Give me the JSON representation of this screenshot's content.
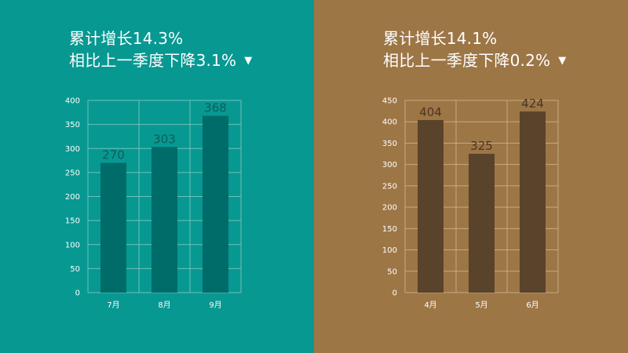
{
  "panels": [
    {
      "headline": {
        "line1": "累计增长14.3%",
        "line2": "相比上一季度下降3.1%",
        "indicator": "▼"
      },
      "colors": {
        "background": "#079891",
        "bar": "#006C69",
        "grid": "#7FC9BF",
        "data_label": "#0B5E5A"
      }
    },
    {
      "headline": {
        "line1": "累计增长14.1%",
        "line2": "相比上一季度下降0.2%",
        "indicator": "▼"
      },
      "colors": {
        "background": "#9D7646",
        "bar": "#5A432B",
        "grid": "#C9B48F",
        "data_label": "#4A3522"
      }
    }
  ],
  "chart_data": [
    {
      "type": "bar",
      "categories": [
        "7月",
        "8月",
        "9月"
      ],
      "values": [
        270,
        303,
        368
      ],
      "ylim": [
        0,
        400
      ],
      "yticks": [
        0,
        50,
        100,
        150,
        200,
        250,
        300,
        350,
        400
      ],
      "grid": true
    },
    {
      "type": "bar",
      "categories": [
        "4月",
        "5月",
        "6月"
      ],
      "values": [
        404,
        325,
        424
      ],
      "ylim": [
        0,
        450
      ],
      "yticks": [
        0,
        50,
        100,
        150,
        200,
        250,
        300,
        350,
        400,
        450
      ],
      "grid": true
    }
  ]
}
